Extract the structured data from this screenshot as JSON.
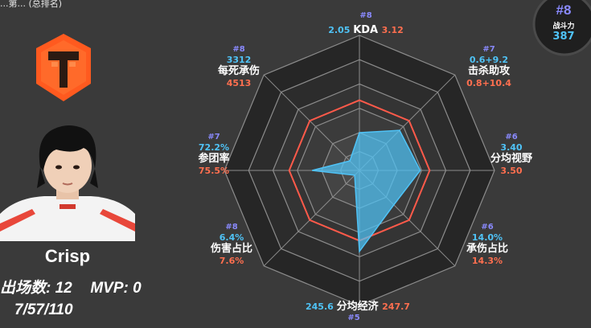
{
  "header": {
    "partial_title": "...第... (总排名)"
  },
  "player": {
    "name": "Crisp",
    "appearances_label": "出场数:",
    "appearances": "12",
    "mvp_label": "MVP:",
    "mvp": "0",
    "kda_record": "7/57/110"
  },
  "team_logo": "tes-team-logo",
  "score": {
    "rank": "#8",
    "label": "战斗力",
    "value": "387"
  },
  "colors": {
    "player_series": "#4fc3f7",
    "average_ring": "#ff5a4a",
    "rank": "#8a8aff",
    "background": "#3a3a3a"
  },
  "radar": {
    "axes": [
      {
        "name": "KDA",
        "rank": "#8",
        "player": "2.05",
        "average": "3.12",
        "player_level": 0.28,
        "average_level": 0.52
      },
      {
        "name": "击杀助攻",
        "rank": "#7",
        "player": "0.6+9.2",
        "average": "0.8+10.4",
        "player_level": 0.42,
        "average_level": 0.52
      },
      {
        "name": "分均视野",
        "rank": "#6",
        "player": "3.40",
        "average": "3.50",
        "player_level": 0.45,
        "average_level": 0.52
      },
      {
        "name": "承伤占比",
        "rank": "#6",
        "player": "14.0%",
        "average": "14.3%",
        "player_level": 0.36,
        "average_level": 0.52
      },
      {
        "name": "分均经济",
        "rank": "#5",
        "player": "245.6",
        "average": "247.7",
        "player_level": 0.6,
        "average_level": 0.52
      },
      {
        "name": "伤害占比",
        "rank": "#8",
        "player": "6.4%",
        "average": "7.6%",
        "player_level": 0.05,
        "average_level": 0.52
      },
      {
        "name": "参团率",
        "rank": "#7",
        "player": "72.2%",
        "average": "75.5%",
        "player_level": 0.35,
        "average_level": 0.52
      },
      {
        "name": "每死承伤",
        "rank": "#8",
        "player": "3312",
        "average": "4513",
        "player_level": 0.1,
        "average_level": 0.52
      }
    ]
  }
}
